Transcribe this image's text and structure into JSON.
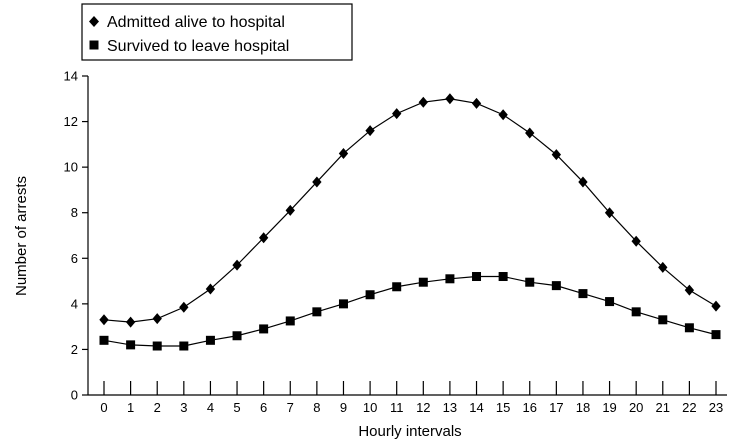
{
  "chart_data": {
    "type": "line",
    "xlabel": "Hourly intervals",
    "ylabel": "Number of arrests",
    "ylim": [
      0,
      14
    ],
    "xlim": [
      0,
      23
    ],
    "grid": false,
    "legend_position": "top-left",
    "x": [
      0,
      1,
      2,
      3,
      4,
      5,
      6,
      7,
      8,
      9,
      10,
      11,
      12,
      13,
      14,
      15,
      16,
      17,
      18,
      19,
      20,
      21,
      22,
      23
    ],
    "x_tick_labels": [
      "0",
      "1",
      "2",
      "3",
      "4",
      "5",
      "6",
      "7",
      "8",
      "9",
      "10",
      "11",
      "12",
      "13",
      "14",
      "15",
      "16",
      "17",
      "18",
      "19",
      "20",
      "21",
      "22",
      "23"
    ],
    "y_tick_labels": [
      "0",
      "2",
      "4",
      "6",
      "8",
      "10",
      "12",
      "14"
    ],
    "series": [
      {
        "name": "Admitted alive to hospital",
        "marker": "diamond",
        "color": "#000000",
        "values": [
          3.3,
          3.2,
          3.35,
          3.85,
          4.65,
          5.7,
          6.9,
          8.1,
          9.35,
          10.6,
          11.6,
          12.35,
          12.85,
          13.0,
          12.8,
          12.3,
          11.5,
          10.55,
          9.35,
          8.0,
          6.75,
          5.6,
          4.6,
          3.9
        ]
      },
      {
        "name": "Survived to leave hospital",
        "marker": "square",
        "color": "#000000",
        "values": [
          2.4,
          2.2,
          2.15,
          2.15,
          2.4,
          2.6,
          2.9,
          3.25,
          3.65,
          4.0,
          4.4,
          4.75,
          4.95,
          5.1,
          5.2,
          5.2,
          4.95,
          4.8,
          4.45,
          4.1,
          3.65,
          3.3,
          2.95,
          2.65
        ]
      }
    ]
  }
}
